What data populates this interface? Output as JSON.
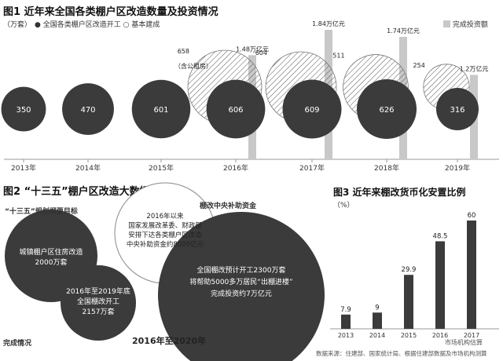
{
  "fig1": {
    "title": "图1 近年来全国各类棚户区改造数量及投资情况",
    "unit": "（万套）",
    "legend_start": "全国各类棚户区改造开工",
    "legend_done": "基本建成",
    "legend_invest": "完成投资额",
    "colors": {
      "dark": "#3b3b3b",
      "invest_bar": "#c8c8c8",
      "hatch": "#555555"
    }
  },
  "fig2": {
    "title": "图2 “十三五”棚户区改造大数据",
    "goal_header": "“十三五”规划纲要目标",
    "goal_text": "城镇棚户区住房改造\n2000万套",
    "progress_text": "2016年至2019年底\n全国棚改开工\n2157万套",
    "funds_header": "棚改中央补助资金",
    "funds_text": "2016年以来\n国家发展改革委、财政部\n安排下达各类棚户区改造\n中央补助资金约8000亿元",
    "big_text_1": "全国棚改预计开工2300万套",
    "big_text_2": "将帮助5000多万居民“出棚进楼”",
    "big_text_3": "完成投资约7万亿元",
    "progress_label": "完成情况",
    "period_label": "2016年至2020年"
  },
  "fig3": {
    "title": "图3 近年来棚改货币化安置比例",
    "unit": "（%）",
    "source_estimate": "市场机构估算",
    "color": "#3b3b3b"
  },
  "source": "数据来源：住建部、国家统计局、根据住建部数据及市场机构测算",
  "chart_data": [
    {
      "type": "bubble",
      "title": "图1 近年来全国各类棚户区改造数量及投资情况",
      "ylabel": "（万套）",
      "categories": [
        "2013年",
        "2014年",
        "2015年",
        "2016年",
        "2017年",
        "2018年",
        "2019年"
      ],
      "series": [
        {
          "name": "全国各类棚户区改造开工",
          "values": [
            350,
            470,
            601,
            606,
            609,
            626,
            316
          ]
        },
        {
          "name": "基本建成",
          "values": [
            null,
            null,
            null,
            658,
            604,
            511,
            254
          ]
        },
        {
          "name": "完成投资额",
          "values": [
            null,
            null,
            null,
            1.48,
            1.84,
            1.74,
            1.2
          ],
          "unit": "万亿元"
        }
      ],
      "annotations": {
        "2016年_基本建成": "（含公租房）"
      },
      "invest_labels": [
        "1.48万亿元",
        "1.84万亿元",
        "1.74万亿元",
        "1.2万亿元"
      ],
      "done_labels": [
        "658",
        "604",
        "511",
        "254"
      ],
      "grid": false,
      "legend": "top-left"
    },
    {
      "type": "bar",
      "title": "图3 近年来棚改货币化安置比例",
      "ylabel": "（%）",
      "categories": [
        "2013",
        "2014",
        "2015",
        "2016",
        "2017"
      ],
      "values": [
        7.9,
        9,
        29.9,
        48.5,
        60
      ],
      "value_labels": [
        "7.9",
        "9",
        "29.9",
        "48.5",
        "60"
      ],
      "ylim": [
        0,
        65
      ],
      "grid": false
    }
  ]
}
